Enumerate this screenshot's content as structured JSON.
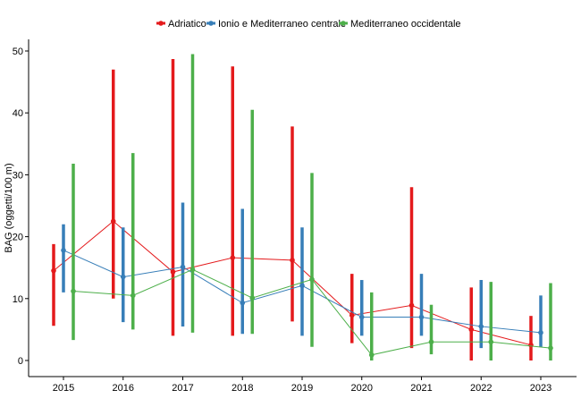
{
  "chart_data": {
    "type": "line",
    "title": "",
    "xlabel": "",
    "ylabel": "BAG (oggetti/100 m)",
    "ylim": [
      0,
      50
    ],
    "yticks": [
      0,
      10,
      20,
      30,
      40,
      50
    ],
    "grid": false,
    "legend_position": "top",
    "categories": [
      "2015",
      "2016",
      "2017",
      "2018",
      "2019",
      "2020",
      "2021",
      "2022",
      "2023"
    ],
    "series": [
      {
        "name": "Adriatico",
        "color": "#E41A1C",
        "values": [
          14.5,
          22.5,
          14.3,
          16.6,
          16.2,
          7.3,
          8.9,
          5.0,
          2.5
        ],
        "low": [
          5.6,
          10.0,
          4.0,
          4.0,
          6.3,
          2.8,
          2.0,
          0.0,
          0.0
        ],
        "high": [
          18.8,
          47.0,
          48.7,
          47.5,
          37.8,
          14.0,
          28.0,
          11.8,
          7.2
        ]
      },
      {
        "name": "Ionio e Mediterraneo centrale",
        "color": "#377EB8",
        "values": [
          17.8,
          13.5,
          15.1,
          9.3,
          12.1,
          7.0,
          7.0,
          5.5,
          4.5
        ],
        "low": [
          11.0,
          6.2,
          5.5,
          4.3,
          4.0,
          4.0,
          4.0,
          2.0,
          2.2
        ],
        "high": [
          22.0,
          21.5,
          25.5,
          24.5,
          21.5,
          13.0,
          14.0,
          13.0,
          10.5
        ]
      },
      {
        "name": "Mediterraneo occidentale",
        "color": "#4DAF4A",
        "values": [
          11.2,
          10.5,
          14.7,
          10.1,
          13.1,
          0.9,
          3.0,
          3.0,
          2.0
        ],
        "low": [
          3.3,
          5.0,
          4.5,
          4.3,
          2.2,
          0.0,
          1.0,
          0.0,
          0.0
        ],
        "high": [
          31.8,
          33.5,
          49.5,
          40.5,
          30.3,
          11.0,
          9.0,
          12.7,
          12.5
        ]
      }
    ]
  }
}
